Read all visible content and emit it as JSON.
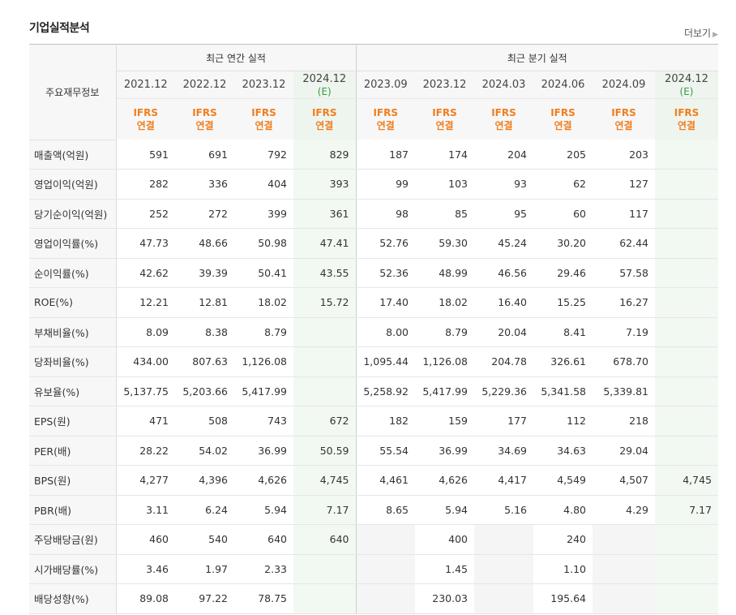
{
  "title": "기업실적분석",
  "more_label": "더보기",
  "header": {
    "row_label": "주요재무정보",
    "annual_group": "최근 연간 실적",
    "quarter_group": "최근 분기 실적",
    "periods": [
      "2021.12",
      "2022.12",
      "2023.12",
      "2024.12",
      "2023.09",
      "2023.12",
      "2024.03",
      "2024.06",
      "2024.09",
      "2024.12"
    ],
    "estimate_mark": "(E)",
    "ifrs_line1": "IFRS",
    "ifrs_line2": "연결"
  },
  "rows": [
    {
      "label": "매출액(억원)",
      "values": [
        "591",
        "691",
        "792",
        "829",
        "187",
        "174",
        "204",
        "205",
        "203",
        ""
      ]
    },
    {
      "label": "영업이익(억원)",
      "values": [
        "282",
        "336",
        "404",
        "393",
        "99",
        "103",
        "93",
        "62",
        "127",
        ""
      ]
    },
    {
      "label": "당기순이익(억원)",
      "values": [
        "252",
        "272",
        "399",
        "361",
        "98",
        "85",
        "95",
        "60",
        "117",
        ""
      ]
    },
    {
      "label": "영업이익률(%)",
      "values": [
        "47.73",
        "48.66",
        "50.98",
        "47.41",
        "52.76",
        "59.30",
        "45.24",
        "30.20",
        "62.44",
        ""
      ]
    },
    {
      "label": "순이익률(%)",
      "values": [
        "42.62",
        "39.39",
        "50.41",
        "43.55",
        "52.36",
        "48.99",
        "46.56",
        "29.46",
        "57.58",
        ""
      ]
    },
    {
      "label": "ROE(%)",
      "values": [
        "12.21",
        "12.81",
        "18.02",
        "15.72",
        "17.40",
        "18.02",
        "16.40",
        "15.25",
        "16.27",
        ""
      ]
    },
    {
      "label": "부채비율(%)",
      "values": [
        "8.09",
        "8.38",
        "8.79",
        "",
        "8.00",
        "8.79",
        "20.04",
        "8.41",
        "7.19",
        ""
      ]
    },
    {
      "label": "당좌비율(%)",
      "values": [
        "434.00",
        "807.63",
        "1,126.08",
        "",
        "1,095.44",
        "1,126.08",
        "204.78",
        "326.61",
        "678.70",
        ""
      ]
    },
    {
      "label": "유보율(%)",
      "values": [
        "5,137.75",
        "5,203.66",
        "5,417.99",
        "",
        "5,258.92",
        "5,417.99",
        "5,229.36",
        "5,341.58",
        "5,339.81",
        ""
      ]
    },
    {
      "label": "EPS(원)",
      "values": [
        "471",
        "508",
        "743",
        "672",
        "182",
        "159",
        "177",
        "112",
        "218",
        ""
      ]
    },
    {
      "label": "PER(배)",
      "values": [
        "28.22",
        "54.02",
        "36.99",
        "50.59",
        "55.54",
        "36.99",
        "34.69",
        "34.63",
        "29.04",
        ""
      ]
    },
    {
      "label": "BPS(원)",
      "values": [
        "4,277",
        "4,396",
        "4,626",
        "4,745",
        "4,461",
        "4,626",
        "4,417",
        "4,549",
        "4,507",
        "4,745"
      ]
    },
    {
      "label": "PBR(배)",
      "values": [
        "3.11",
        "6.24",
        "5.94",
        "7.17",
        "8.65",
        "5.94",
        "5.16",
        "4.80",
        "4.29",
        "7.17"
      ]
    },
    {
      "label": "주당배당금(원)",
      "values": [
        "460",
        "540",
        "640",
        "640",
        "",
        "400",
        "",
        "240",
        "",
        ""
      ]
    },
    {
      "label": "시가배당률(%)",
      "values": [
        "3.46",
        "1.97",
        "2.33",
        "",
        "",
        "1.45",
        "",
        "1.10",
        "",
        ""
      ]
    },
    {
      "label": "배당성향(%)",
      "values": [
        "89.08",
        "97.22",
        "78.75",
        "",
        "",
        "230.03",
        "",
        "195.64",
        "",
        ""
      ]
    }
  ]
}
